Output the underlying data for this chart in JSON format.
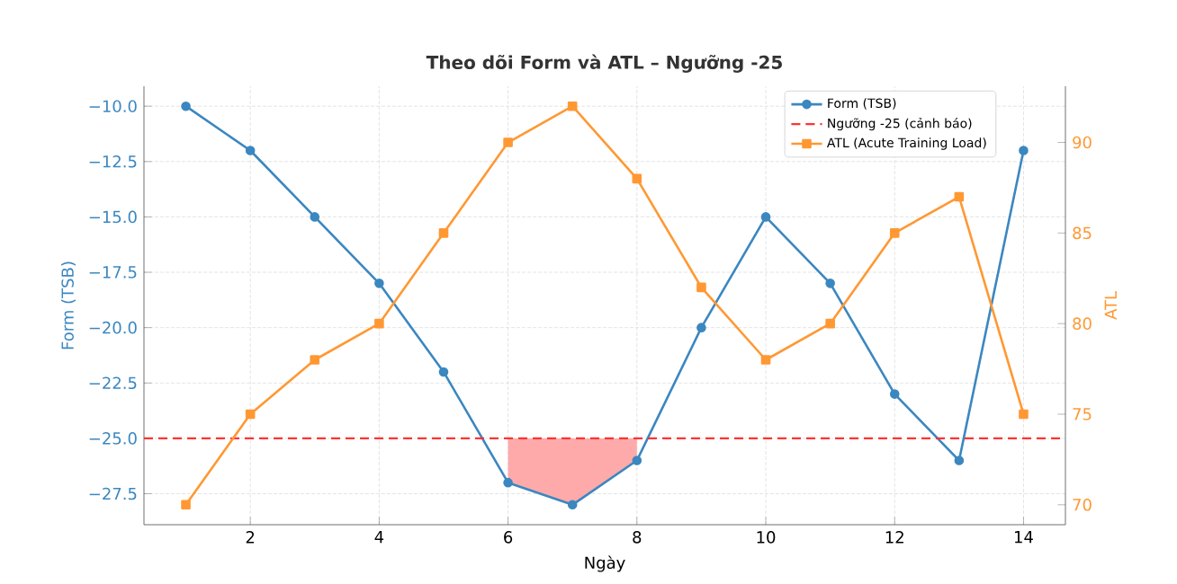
{
  "chart_data": {
    "type": "line",
    "title": "Theo dõi Form và ATL – Ngưỡng -25",
    "xlabel": "Ngày",
    "ylabel": "Form (TSB)",
    "y2label": "ATL",
    "x": [
      1,
      2,
      3,
      4,
      5,
      6,
      7,
      8,
      9,
      10,
      11,
      12,
      13,
      14
    ],
    "series": [
      {
        "name": "Form (TSB)",
        "color": "#3b87c0",
        "marker": "circle",
        "values": [
          -10,
          -12,
          -15,
          -18,
          -22,
          -27,
          -28,
          -26,
          -20,
          -15,
          -18,
          -23,
          -26,
          -12
        ]
      },
      {
        "color": "#ffaaaa",
        "x": [
          6,
          7,
          8
        ],
        "values": [
          null,
          null,
          null
        ],
        "lower": [
          -27,
          -28,
          -26
        ],
        "upper": [
          -25,
          -25,
          -25
        ]
      },
      {
        "name": "ATL (Acute Training Load)",
        "color": "#ff9833",
        "marker": "square",
        "axis": "y2",
        "values": [
          70,
          75,
          78,
          80,
          85,
          90,
          92,
          88,
          82,
          78,
          80,
          85,
          87,
          75
        ]
      }
    ],
    "ref_lines": [
      {
        "axis": "y",
        "value": -25,
        "label": "Ngưỡng -25 (cảnh báo)",
        "color": "#ff3333",
        "line_style": "dashed"
      }
    ],
    "xlim": [
      0.35,
      14.65
    ],
    "xticks": [
      2,
      4,
      6,
      8,
      10,
      12,
      14
    ],
    "ylim": [
      -28.9,
      -9.1
    ],
    "yticks": [
      {
        "value": -27.5,
        "label": "−27.5"
      },
      {
        "value": -25,
        "label": "−25.0"
      },
      {
        "value": -22.5,
        "label": "−22.5"
      },
      {
        "value": -20,
        "label": "−20.0"
      },
      {
        "value": -17.5,
        "label": "−17.5"
      },
      {
        "value": -15,
        "label": "−15.0"
      },
      {
        "value": -12.5,
        "label": "−12.5"
      },
      {
        "value": -10,
        "label": "−10.0"
      }
    ],
    "y2lim": [
      68.9,
      93.1
    ],
    "y2ticks": [
      70,
      75,
      80,
      85,
      90
    ],
    "grid": true,
    "legend": "top right"
  }
}
